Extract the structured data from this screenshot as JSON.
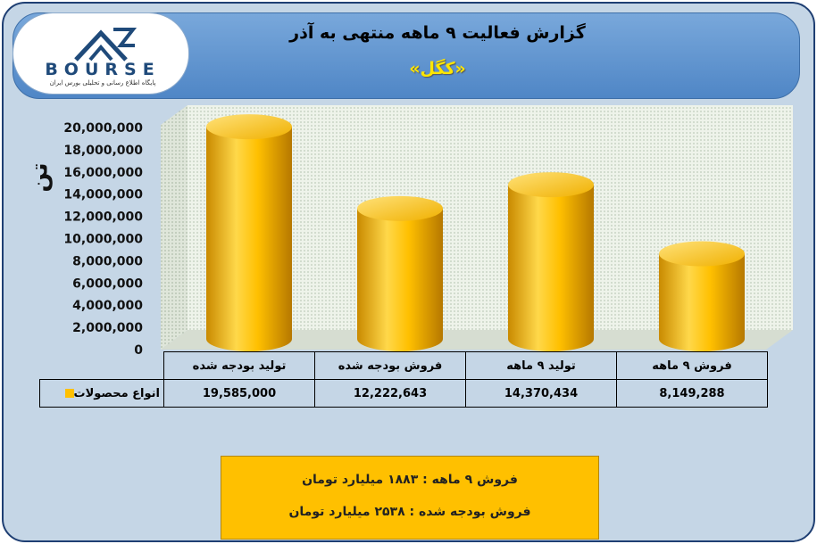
{
  "header": {
    "title": "گزارش فعالیت ۹ ماهه منتهی به آذر",
    "subtitle": "«کگل»"
  },
  "logo": {
    "wordmark": "BOURSE",
    "tagline": "پایگاه اطلاع رسانی و تحلیلی بورس ایران",
    "colors": {
      "mark": "#1f4a7a"
    }
  },
  "unit_label": "تن",
  "chart_data": {
    "type": "bar",
    "style": "3d-cylinder",
    "categories": [
      "تولید بودجه شده",
      "فروش بودجه شده",
      "تولید ۹ ماهه",
      "فروش ۹ ماهه"
    ],
    "series": [
      {
        "name": "انواع محصولات",
        "values": [
          19585000,
          12222643,
          14370434,
          8149288
        ],
        "color": "#ffc000"
      }
    ],
    "value_labels": [
      "19,585,000",
      "12,222,643",
      "14,370,434",
      "8,149,288"
    ],
    "ylim": [
      0,
      20000000
    ],
    "yticks": [
      "0",
      "2,000,000",
      "4,000,000",
      "6,000,000",
      "8,000,000",
      "10,000,000",
      "12,000,000",
      "14,000,000",
      "16,000,000",
      "18,000,000",
      "20,000,000"
    ],
    "grid": false,
    "legend": "data-table"
  },
  "note": {
    "line1": "فروش ۹ ماهه : ۱۸۸۳ میلیارد تومان",
    "line2": "فروش بودجه شده : ۲۵۳۸ میلیارد تومان"
  }
}
